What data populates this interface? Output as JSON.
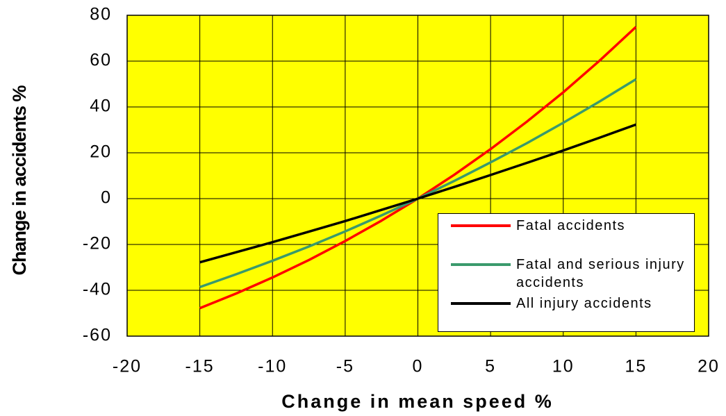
{
  "chart_data": {
    "type": "line",
    "xlabel": "Change in mean speed %",
    "ylabel": "Change in accidents %",
    "x": [
      -15,
      -12.5,
      -10,
      -7.5,
      -5,
      -2.5,
      0,
      2.5,
      5,
      7.5,
      10,
      12.5,
      15
    ],
    "series": [
      {
        "name": "Fatal accidents",
        "color": "#ff0000",
        "values": [
          -47.8,
          -41.4,
          -34.4,
          -26.8,
          -18.5,
          -9.6,
          0,
          10.4,
          21.6,
          33.6,
          46.4,
          60.2,
          74.9
        ]
      },
      {
        "name": "Fatal and serious injury accidents",
        "color": "#3a9a6c",
        "values": [
          -38.6,
          -33.0,
          -27.1,
          -20.9,
          -14.3,
          -7.3,
          0,
          7.7,
          15.8,
          24.2,
          33.1,
          42.4,
          52.1
        ]
      },
      {
        "name": "All injury accidents",
        "color": "#000000",
        "values": [
          -27.8,
          -23.4,
          -19.0,
          -14.4,
          -9.8,
          -4.9,
          0,
          5.1,
          10.3,
          15.6,
          21.0,
          26.6,
          32.3
        ]
      }
    ],
    "xlim": [
      -20,
      20
    ],
    "xticks": [
      -20,
      -15,
      -10,
      -5,
      0,
      5,
      10,
      15,
      20
    ],
    "ylim": [
      -60,
      80
    ],
    "yticks": [
      -60,
      -40,
      -20,
      0,
      20,
      40,
      60,
      80
    ],
    "grid": true,
    "background": "#ffff00",
    "legend": "lower right"
  }
}
